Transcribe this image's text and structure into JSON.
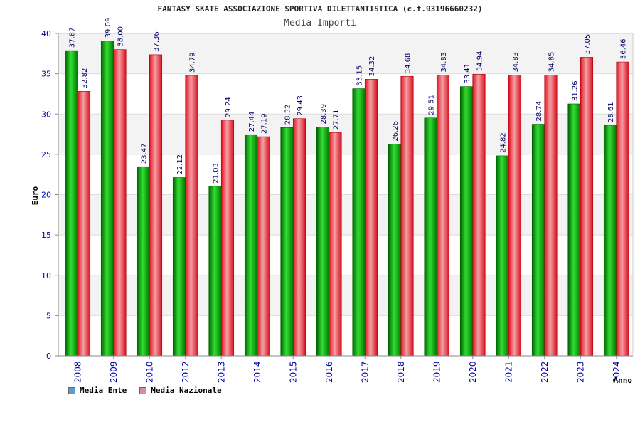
{
  "chart_data": {
    "type": "bar",
    "title": "FANTASY SKATE ASSOCIAZIONE SPORTIVA DILETTANTISTICA (c.f.93196660232)",
    "subtitle": "Media Importi",
    "xlabel": "Anno",
    "ylabel": "Euro",
    "ylim": [
      0,
      40
    ],
    "yticks": [
      0,
      5,
      10,
      15,
      20,
      25,
      30,
      35,
      40
    ],
    "grid": true,
    "categories": [
      "2008",
      "2009",
      "2010",
      "2012",
      "2013",
      "2014",
      "2015",
      "2016",
      "2017",
      "2018",
      "2019",
      "2020",
      "2021",
      "2022",
      "2023",
      "2024"
    ],
    "series": [
      {
        "name": "Media Ente",
        "color": "#00b000",
        "legend_color": "#5b9bd5",
        "values": [
          37.87,
          39.09,
          23.47,
          22.12,
          21.03,
          27.44,
          28.32,
          28.39,
          33.15,
          26.26,
          29.51,
          33.41,
          24.82,
          28.74,
          31.26,
          28.61
        ]
      },
      {
        "name": "Media Nazionale",
        "color": "#e8202a",
        "legend_color": "#d98ab0",
        "values": [
          32.82,
          38.0,
          37.36,
          34.79,
          29.24,
          27.19,
          29.43,
          27.71,
          34.32,
          34.68,
          34.83,
          34.94,
          34.83,
          34.85,
          37.05,
          36.46
        ]
      }
    ],
    "value_labels": [
      [
        "37.87",
        "39.09",
        "23.47",
        "22.12",
        "21.03",
        "27.44",
        "28.32",
        "28.39",
        "33.15",
        "26.26",
        "29.51",
        "33.41",
        "24.82",
        "28.74",
        "31.26",
        "28.61"
      ],
      [
        "32.82",
        "38.00",
        "37.36",
        "34.79",
        "29.24",
        "27.19",
        "29.43",
        "27.71",
        "34.32",
        "34.68",
        "34.83",
        "34.94",
        "34.83",
        "34.85",
        "37.05",
        "36.46"
      ]
    ],
    "legend_position": "bottom-left"
  }
}
